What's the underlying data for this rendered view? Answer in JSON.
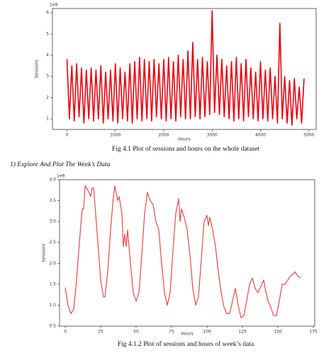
{
  "heading": "1)    Explore And Plot The Week’s Data",
  "chart_data": [
    {
      "type": "line",
      "caption": "Fig 4.1 Plot of sessions and hours on the whole dataset",
      "x_label": "Hours",
      "y_label": "Sessions",
      "y_offset_label": "1e9",
      "xlim": [
        -300,
        5150
      ],
      "ylim": [
        0.5,
        6.2
      ],
      "xticks": [
        0,
        1000,
        2000,
        3000,
        4000,
        5000
      ],
      "yticks": [
        1,
        2,
        3,
        4,
        5,
        6
      ],
      "series": [
        {
          "color": "#e8000b",
          "x": [
            0,
            50,
            100,
            150,
            200,
            250,
            300,
            350,
            400,
            450,
            500,
            550,
            600,
            650,
            700,
            750,
            800,
            850,
            900,
            950,
            1000,
            1050,
            1100,
            1150,
            1200,
            1250,
            1300,
            1350,
            1400,
            1450,
            1500,
            1550,
            1600,
            1650,
            1700,
            1750,
            1800,
            1850,
            1900,
            1950,
            2000,
            2050,
            2100,
            2150,
            2200,
            2250,
            2300,
            2350,
            2400,
            2450,
            2500,
            2550,
            2600,
            2650,
            2700,
            2750,
            2800,
            2850,
            2900,
            2950,
            3000,
            3050,
            3100,
            3150,
            3200,
            3250,
            3300,
            3350,
            3400,
            3450,
            3500,
            3550,
            3600,
            3650,
            3700,
            3750,
            3800,
            3850,
            3900,
            3950,
            4000,
            4050,
            4100,
            4150,
            4200,
            4250,
            4300,
            4350,
            4400,
            4450,
            4500,
            4550,
            4600,
            4650,
            4700,
            4750,
            4800,
            4850,
            4900
          ],
          "values": [
            3.8,
            1.0,
            3.5,
            0.9,
            3.6,
            1.1,
            3.4,
            0.8,
            3.3,
            1.0,
            3.4,
            0.9,
            3.3,
            1.0,
            3.5,
            0.8,
            3.2,
            1.0,
            3.3,
            0.9,
            3.6,
            0.8,
            3.4,
            1.0,
            3.2,
            0.9,
            3.6,
            0.8,
            3.7,
            1.0,
            3.9,
            0.9,
            3.8,
            1.0,
            3.7,
            0.9,
            3.8,
            1.1,
            3.6,
            1.0,
            3.8,
            0.9,
            3.9,
            1.0,
            3.7,
            0.9,
            4.0,
            1.1,
            3.8,
            1.0,
            4.2,
            1.0,
            4.6,
            1.1,
            3.8,
            1.0,
            3.9,
            1.1,
            3.7,
            1.2,
            6.1,
            1.3,
            4.0,
            1.2,
            3.8,
            1.1,
            3.5,
            1.0,
            3.7,
            0.9,
            3.9,
            1.0,
            3.6,
            0.9,
            3.8,
            1.1,
            3.4,
            1.0,
            3.2,
            0.9,
            3.7,
            1.0,
            3.3,
            0.9,
            3.4,
            1.0,
            3.0,
            0.8,
            5.5,
            1.0,
            3.0,
            0.8,
            2.8,
            0.7,
            2.9,
            1.0,
            2.5,
            0.8,
            2.9
          ]
        }
      ]
    },
    {
      "type": "line",
      "caption": "Fig 4.1.2 Plot of sessions and hours of week’s data",
      "x_label": "Hours",
      "y_label": "Sessions",
      "y_offset_label": "1e9",
      "xlim": [
        -4,
        176
      ],
      "ylim": [
        0.5,
        4.0
      ],
      "xticks": [
        0,
        25,
        50,
        75,
        100,
        125,
        150,
        175
      ],
      "yticks": [
        0.5,
        {
          "value": 1,
          "label": "1.0"
        },
        1.5,
        {
          "value": 2,
          "label": "2.0"
        },
        2.5,
        {
          "value": 3,
          "label": "3.0"
        },
        3.5,
        {
          "value": 4,
          "label": "4.0"
        }
      ],
      "series": [
        {
          "color": "#e8474b",
          "x": [
            0,
            2,
            4,
            6,
            8,
            10,
            12,
            13,
            14,
            16,
            18,
            19,
            20,
            21,
            23,
            25,
            27,
            28,
            30,
            32,
            34,
            35,
            37,
            38,
            40,
            41,
            42,
            43,
            44,
            46,
            48,
            50,
            52,
            54,
            56,
            58,
            60,
            62,
            64,
            66,
            68,
            70,
            72,
            74,
            76,
            78,
            80,
            81,
            82,
            84,
            86,
            88,
            90,
            92,
            94,
            96,
            98,
            100,
            101,
            102,
            104,
            106,
            108,
            110,
            112,
            114,
            116,
            118,
            120,
            122,
            124,
            126,
            128,
            130,
            132,
            134,
            136,
            138,
            140,
            141,
            143,
            145,
            147,
            149,
            151,
            153,
            155,
            157,
            159,
            161,
            162,
            164,
            166
          ],
          "values": [
            1.42,
            1.0,
            0.8,
            0.9,
            1.6,
            2.5,
            3.3,
            3.3,
            3.85,
            3.75,
            3.6,
            3.8,
            3.8,
            3.4,
            2.5,
            1.6,
            1.2,
            1.2,
            1.8,
            2.8,
            3.6,
            3.85,
            3.5,
            3.6,
            3.2,
            2.4,
            2.7,
            2.4,
            2.8,
            2.0,
            1.3,
            1.1,
            1.3,
            2.2,
            3.2,
            3.7,
            3.5,
            3.4,
            3.0,
            2.8,
            2.0,
            1.3,
            1.0,
            1.3,
            2.3,
            3.2,
            3.55,
            3.0,
            3.3,
            3.1,
            2.8,
            2.2,
            1.4,
            1.0,
            1.2,
            2.1,
            3.0,
            3.15,
            2.9,
            3.1,
            2.8,
            2.4,
            1.8,
            1.3,
            0.95,
            0.8,
            0.8,
            1.1,
            1.4,
            1.0,
            0.7,
            0.75,
            1.1,
            1.5,
            1.65,
            1.4,
            1.3,
            1.45,
            1.6,
            1.4,
            1.1,
            0.95,
            0.75,
            0.75,
            1.1,
            1.5,
            1.5,
            1.6,
            1.7,
            1.75,
            1.8,
            1.7,
            1.65
          ]
        }
      ]
    }
  ]
}
